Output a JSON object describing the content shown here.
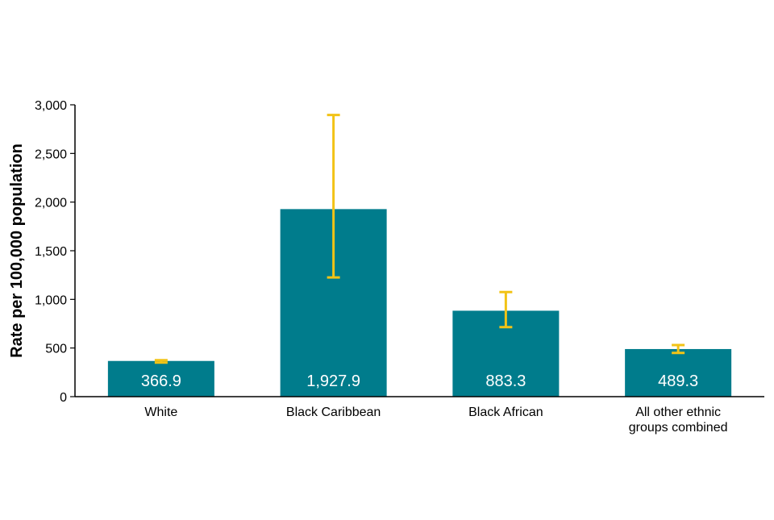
{
  "chart_data": {
    "type": "bar",
    "title": "",
    "xlabel": "",
    "ylabel": "Rate per 100,000 population",
    "ylim": [
      0,
      3000
    ],
    "yticks": [
      0,
      500,
      1000,
      1500,
      2000,
      2500,
      3000
    ],
    "ytick_labels": [
      "0",
      "500",
      "1,000",
      "1,500",
      "2,000",
      "2,500",
      "3,000"
    ],
    "categories": [
      [
        "White"
      ],
      [
        "Black Caribbean"
      ],
      [
        "Black African"
      ],
      [
        "All other ethnic",
        "groups combined"
      ]
    ],
    "values": [
      366.9,
      1927.9,
      883.3,
      489.3
    ],
    "value_labels": [
      "366.9",
      "1,927.9",
      "883.3",
      "489.3"
    ],
    "error_bars": [
      {
        "low": 350,
        "high": 375
      },
      {
        "low": 1225,
        "high": 2895
      },
      {
        "low": 715,
        "high": 1075
      },
      {
        "low": 450,
        "high": 530
      }
    ],
    "grid": false,
    "legend": "none",
    "colors": {
      "bar": "#007c8c",
      "error": "#f2c316",
      "axis": "#000000",
      "label_inside": "#ffffff"
    }
  }
}
